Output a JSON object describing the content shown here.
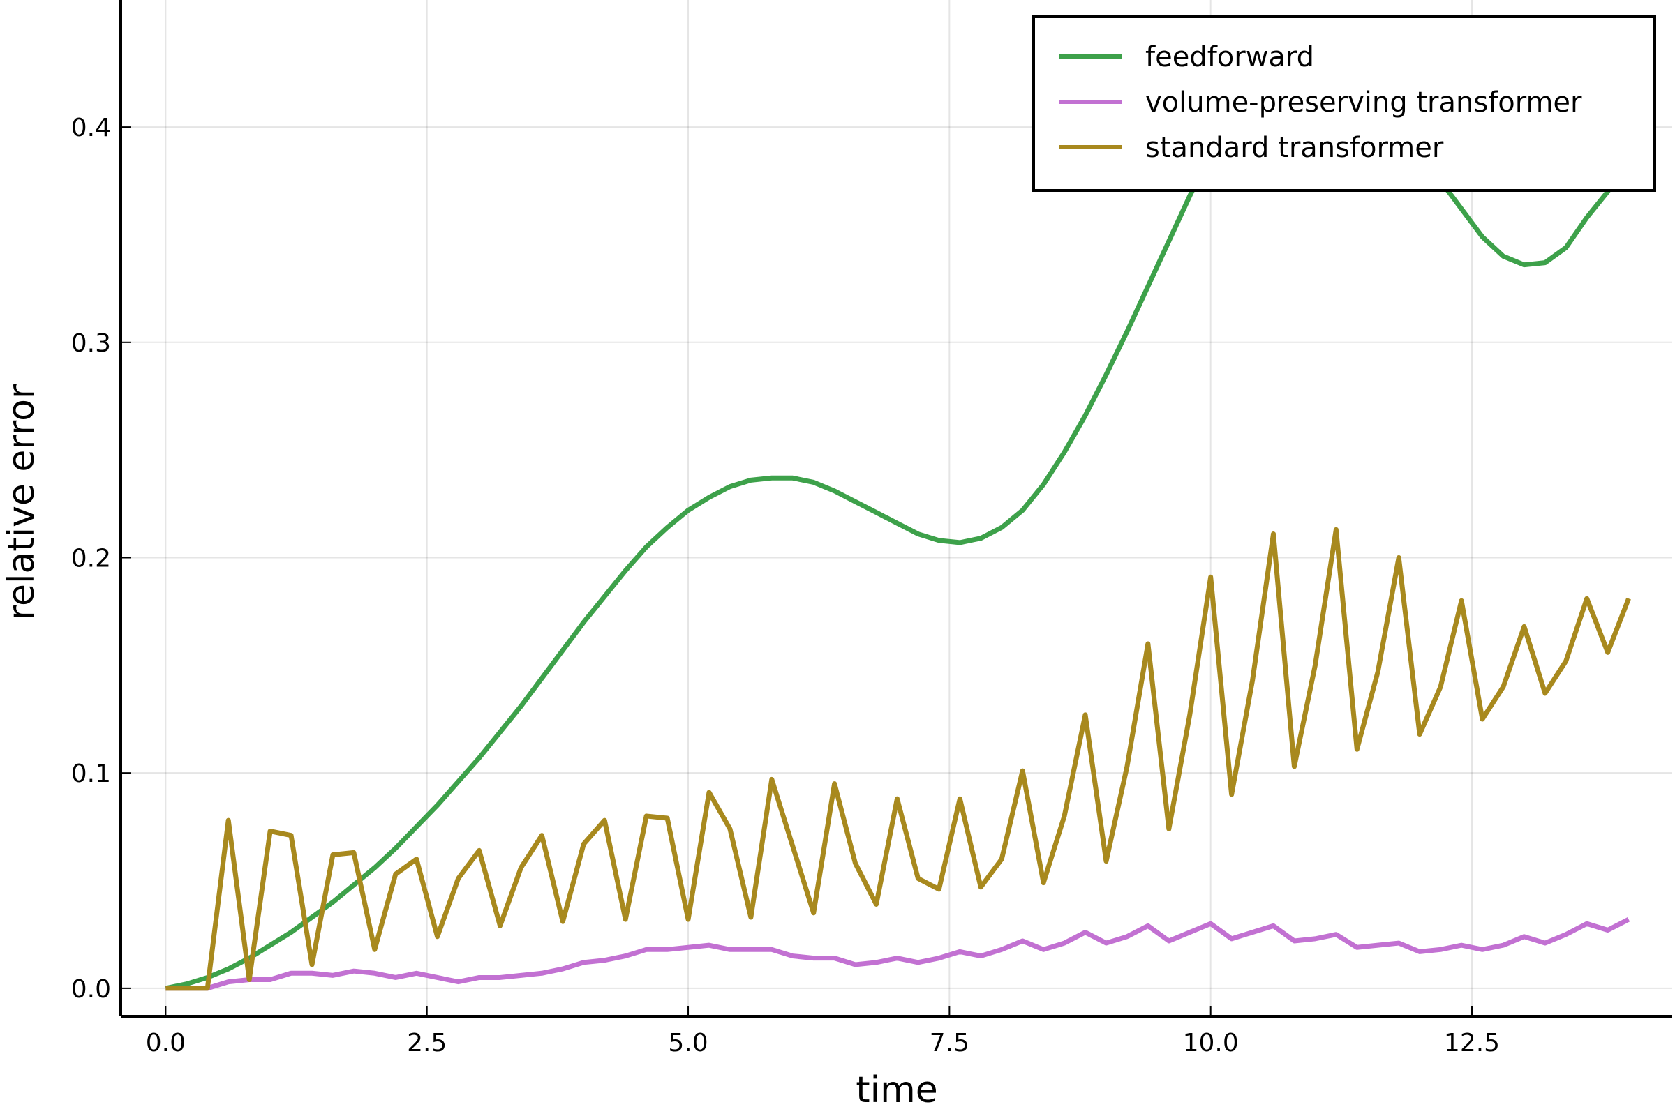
{
  "chart_data": {
    "type": "line",
    "x_label": "time",
    "y_label": "relative error",
    "x": [
      0,
      0.2,
      0.4,
      0.6,
      0.8,
      1,
      1.2,
      1.4,
      1.6,
      1.8,
      2,
      2.2,
      2.4,
      2.6,
      2.8,
      3,
      3.2,
      3.4,
      3.6,
      3.8,
      4,
      4.2,
      4.4,
      4.6,
      4.8,
      5,
      5.2,
      5.4,
      5.6,
      5.8,
      6,
      6.2,
      6.4,
      6.6,
      6.8,
      7,
      7.2,
      7.4,
      7.6,
      7.8,
      8,
      8.2,
      8.4,
      8.6,
      8.8,
      9,
      9.2,
      9.4,
      9.6,
      9.8,
      10,
      10.2,
      10.4,
      10.6,
      10.8,
      11,
      11.2,
      11.4,
      11.6,
      11.8,
      12,
      12.2,
      12.4,
      12.6,
      12.8,
      13,
      13.2,
      13.4,
      13.6,
      13.8,
      14
    ],
    "series": [
      {
        "name": "feedforward",
        "color": "#3da14a",
        "values": [
          0,
          0.002,
          0.005,
          0.009,
          0.014,
          0.02,
          0.026,
          0.033,
          0.04,
          0.048,
          0.056,
          0.065,
          0.075,
          0.085,
          0.096,
          0.107,
          0.119,
          0.131,
          0.144,
          0.157,
          0.17,
          0.182,
          0.194,
          0.205,
          0.214,
          0.222,
          0.228,
          0.233,
          0.236,
          0.237,
          0.237,
          0.235,
          0.231,
          0.226,
          0.221,
          0.216,
          0.211,
          0.208,
          0.207,
          0.209,
          0.214,
          0.222,
          0.234,
          0.249,
          0.266,
          0.285,
          0.305,
          0.326,
          0.347,
          0.368,
          0.388,
          0.402,
          0.415,
          0.424,
          0.428,
          0.427,
          0.422,
          0.413,
          0.405,
          0.395,
          0.385,
          0.375,
          0.362,
          0.349,
          0.34,
          0.336,
          0.337,
          0.344,
          0.358,
          0.37,
          0.39
        ]
      },
      {
        "name": "volume-preserving transformer",
        "color": "#c271d2",
        "values": [
          0,
          0,
          0,
          0.003,
          0.004,
          0.004,
          0.007,
          0.007,
          0.006,
          0.008,
          0.007,
          0.005,
          0.007,
          0.005,
          0.003,
          0.005,
          0.005,
          0.006,
          0.007,
          0.009,
          0.012,
          0.013,
          0.015,
          0.018,
          0.018,
          0.019,
          0.02,
          0.018,
          0.018,
          0.018,
          0.015,
          0.014,
          0.014,
          0.011,
          0.012,
          0.014,
          0.012,
          0.014,
          0.017,
          0.015,
          0.018,
          0.022,
          0.018,
          0.021,
          0.026,
          0.021,
          0.024,
          0.029,
          0.022,
          0.026,
          0.03,
          0.023,
          0.026,
          0.029,
          0.022,
          0.023,
          0.025,
          0.019,
          0.02,
          0.021,
          0.017,
          0.018,
          0.02,
          0.018,
          0.02,
          0.024,
          0.021,
          0.025,
          0.03,
          0.027,
          0.032
        ]
      },
      {
        "name": "standard transformer",
        "color": "#a8891e",
        "values": [
          0,
          0,
          0,
          0.078,
          0.004,
          0.073,
          0.071,
          0.011,
          0.062,
          0.063,
          0.018,
          0.053,
          0.06,
          0.024,
          0.051,
          0.064,
          0.029,
          0.056,
          0.071,
          0.031,
          0.067,
          0.078,
          0.032,
          0.08,
          0.079,
          0.032,
          0.091,
          0.074,
          0.033,
          0.097,
          0.066,
          0.035,
          0.095,
          0.058,
          0.039,
          0.088,
          0.051,
          0.046,
          0.088,
          0.047,
          0.06,
          0.101,
          0.049,
          0.08,
          0.127,
          0.059,
          0.103,
          0.16,
          0.074,
          0.127,
          0.191,
          0.09,
          0.143,
          0.211,
          0.103,
          0.15,
          0.213,
          0.111,
          0.147,
          0.2,
          0.118,
          0.14,
          0.18,
          0.125,
          0.14,
          0.168,
          0.137,
          0.152,
          0.181,
          0.156,
          0.181
        ]
      }
    ],
    "xlim": [
      -0.43,
      14.41
    ],
    "ylim": [
      -0.013,
      0.459
    ],
    "xticks": [
      {
        "value": 0,
        "label": "0.0"
      },
      2.5,
      {
        "value": 5,
        "label": "5.0"
      },
      7.5,
      {
        "value": 10,
        "label": "10.0"
      },
      12.5
    ],
    "yticks": [
      {
        "value": 0,
        "label": "0.0"
      },
      0.1,
      0.2,
      0.3,
      0.4
    ],
    "grid": true,
    "legend": "upper right"
  }
}
